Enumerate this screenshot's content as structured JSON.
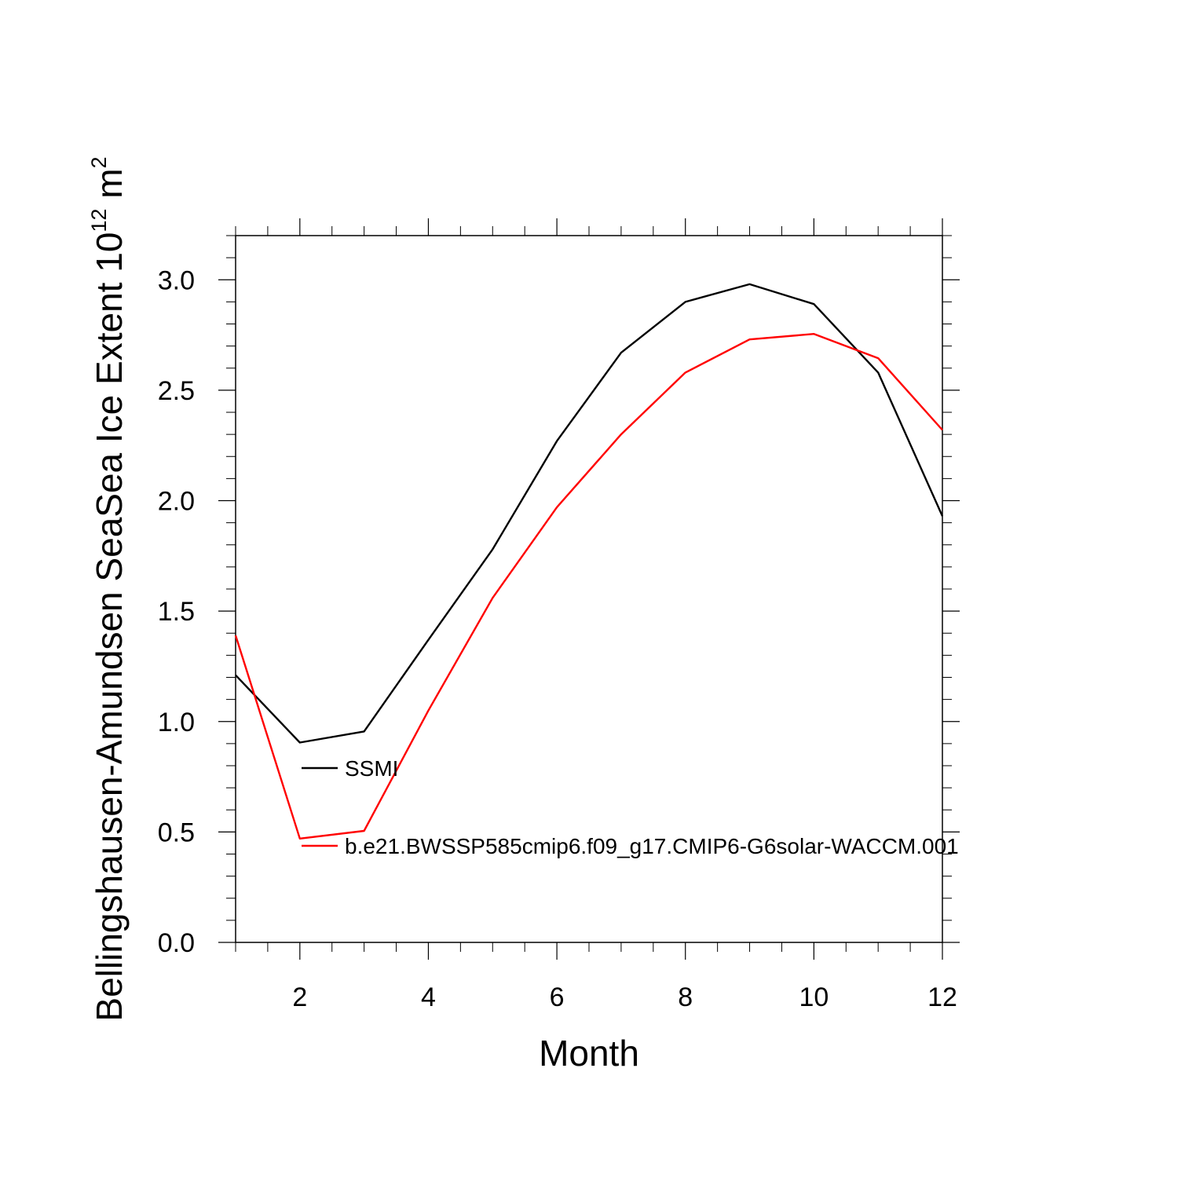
{
  "chart_data": {
    "type": "line",
    "title": "",
    "xlabel": "Month",
    "ylabel": {
      "main": "Bellingshausen-Amundsen SeaSea Ice Extent 10",
      "superscript1": "12",
      "unit": " m",
      "superscript2": "2"
    },
    "xlim": [
      1,
      12
    ],
    "ylim": [
      0,
      3.2
    ],
    "x_ticks": [
      2,
      4,
      6,
      8,
      10,
      12
    ],
    "y_ticks": [
      0.0,
      0.5,
      1.0,
      1.5,
      2.0,
      2.5,
      3.0
    ],
    "y_tick_labels": [
      "0.0",
      "0.5",
      "1.0",
      "1.5",
      "2.0",
      "2.5",
      "3.0"
    ],
    "grid": false,
    "legend_placement": "inside-lower-left",
    "x": [
      1,
      2,
      3,
      4,
      5,
      6,
      7,
      8,
      9,
      10,
      11,
      12
    ],
    "series": [
      {
        "name": "SSMI",
        "color": "#000000",
        "values": [
          1.21,
          0.905,
          0.955,
          1.37,
          1.78,
          2.27,
          2.67,
          2.9,
          2.98,
          2.89,
          2.58,
          1.93
        ]
      },
      {
        "name": "b.e21.BWSSP585cmip6.f09_g17.CMIP6-G6solar-WACCM.001",
        "color": "#ff0000",
        "values": [
          1.39,
          0.47,
          0.505,
          1.05,
          1.56,
          1.97,
          2.3,
          2.58,
          2.73,
          2.755,
          2.645,
          2.32
        ]
      }
    ]
  }
}
